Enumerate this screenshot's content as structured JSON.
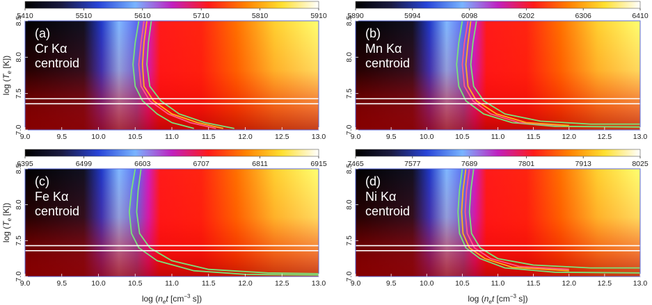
{
  "chart_data": {
    "type": "heatmap",
    "xlabel": "log (n_e t [cm^-3 s])",
    "ylabel": "log (T_e [K])",
    "xlim": [
      9.0,
      13.0
    ],
    "ylim": [
      7.0,
      8.5
    ],
    "x_ticks": [
      "9.0",
      "9.5",
      "10.0",
      "10.5",
      "11.0",
      "11.5",
      "12.0",
      "12.5",
      "13.0"
    ],
    "y_ticks": [
      "7.0",
      "7.5",
      "8.0",
      "8.5"
    ],
    "white_lines_logT": [
      7.36,
      7.43
    ],
    "colormap": [
      "#000000",
      "#1a1a40",
      "#2844d8",
      "#78b4ff",
      "#c020c0",
      "#ff1a1a",
      "#ff8000",
      "#ffe030",
      "#ffffff"
    ],
    "panels": [
      {
        "label": "(a)",
        "line1": "Cr Kα",
        "line2": "centroid",
        "colorbar_ticks": [
          "5410",
          "5510",
          "5610",
          "5710",
          "5810",
          "5910"
        ],
        "contours": [
          {
            "name": "green-left",
            "color": "#7be37b",
            "points": [
              [
                10.55,
                8.5
              ],
              [
                10.5,
                8.2
              ],
              [
                10.47,
                7.9
              ],
              [
                10.5,
                7.6
              ],
              [
                10.6,
                7.4
              ],
              [
                10.8,
                7.22
              ],
              [
                11.0,
                7.1
              ],
              [
                11.3,
                7.02
              ]
            ]
          },
          {
            "name": "pink-left",
            "color": "#ff5a8a",
            "points": [
              [
                10.62,
                8.5
              ],
              [
                10.58,
                8.2
              ],
              [
                10.55,
                7.9
              ],
              [
                10.58,
                7.6
              ],
              [
                10.7,
                7.4
              ],
              [
                10.95,
                7.22
              ],
              [
                11.25,
                7.1
              ],
              [
                11.6,
                7.02
              ]
            ]
          },
          {
            "name": "orange",
            "color": "#ffb020",
            "points": [
              [
                10.66,
                8.5
              ],
              [
                10.62,
                8.2
              ],
              [
                10.6,
                7.9
              ],
              [
                10.62,
                7.6
              ],
              [
                10.75,
                7.4
              ],
              [
                11.0,
                7.22
              ],
              [
                11.35,
                7.1
              ],
              [
                11.7,
                7.02
              ]
            ]
          },
          {
            "name": "green-right",
            "color": "#7be37b",
            "points": [
              [
                10.72,
                8.5
              ],
              [
                10.68,
                8.2
              ],
              [
                10.66,
                7.9
              ],
              [
                10.7,
                7.6
              ],
              [
                10.85,
                7.4
              ],
              [
                11.1,
                7.22
              ],
              [
                11.45,
                7.1
              ],
              [
                11.85,
                7.02
              ]
            ]
          }
        ]
      },
      {
        "label": "(b)",
        "line1": "Mn Kα",
        "line2": "centroid",
        "colorbar_ticks": [
          "5890",
          "5994",
          "6098",
          "6202",
          "6306",
          "6410"
        ],
        "contours": [
          {
            "name": "green-left",
            "color": "#7be37b",
            "points": [
              [
                10.5,
                8.5
              ],
              [
                10.45,
                8.2
              ],
              [
                10.42,
                7.9
              ],
              [
                10.45,
                7.6
              ],
              [
                10.55,
                7.4
              ],
              [
                10.8,
                7.22
              ],
              [
                11.2,
                7.1
              ],
              [
                11.8,
                7.05
              ],
              [
                13.0,
                7.04
              ]
            ]
          },
          {
            "name": "pink-left",
            "color": "#ff5a8a",
            "points": [
              [
                10.58,
                8.5
              ],
              [
                10.53,
                8.2
              ],
              [
                10.5,
                7.9
              ],
              [
                10.53,
                7.6
              ],
              [
                10.65,
                7.4
              ],
              [
                10.9,
                7.22
              ],
              [
                11.3,
                7.1
              ],
              [
                11.9,
                7.06
              ]
            ]
          },
          {
            "name": "orange",
            "color": "#ffb020",
            "points": [
              [
                10.62,
                8.5
              ],
              [
                10.58,
                8.2
              ],
              [
                10.55,
                7.9
              ],
              [
                10.58,
                7.6
              ],
              [
                10.7,
                7.4
              ],
              [
                10.98,
                7.22
              ],
              [
                11.4,
                7.1
              ],
              [
                12.0,
                7.06
              ]
            ]
          },
          {
            "name": "green-right",
            "color": "#7be37b",
            "points": [
              [
                10.7,
                8.5
              ],
              [
                10.65,
                8.2
              ],
              [
                10.62,
                7.9
              ],
              [
                10.66,
                7.6
              ],
              [
                10.8,
                7.4
              ],
              [
                11.1,
                7.22
              ],
              [
                11.6,
                7.12
              ],
              [
                12.3,
                7.08
              ],
              [
                13.0,
                7.08
              ]
            ]
          }
        ]
      },
      {
        "label": "(c)",
        "line1": "Fe Kα",
        "line2": "centroid",
        "colorbar_ticks": [
          "6395",
          "6499",
          "6603",
          "6707",
          "6811",
          "6915"
        ],
        "contours": [
          {
            "name": "green-left",
            "color": "#7be37b",
            "points": [
              [
                10.5,
                8.5
              ],
              [
                10.45,
                8.2
              ],
              [
                10.42,
                7.9
              ],
              [
                10.45,
                7.6
              ],
              [
                10.55,
                7.4
              ],
              [
                10.8,
                7.22
              ],
              [
                11.3,
                7.08
              ],
              [
                12.0,
                7.03
              ],
              [
                13.0,
                7.02
              ]
            ]
          },
          {
            "name": "green-right",
            "color": "#7be37b",
            "points": [
              [
                10.58,
                8.5
              ],
              [
                10.54,
                8.2
              ],
              [
                10.52,
                7.9
              ],
              [
                10.56,
                7.6
              ],
              [
                10.7,
                7.4
              ],
              [
                11.0,
                7.22
              ],
              [
                11.5,
                7.1
              ],
              [
                12.3,
                7.05
              ],
              [
                13.0,
                7.04
              ]
            ]
          }
        ]
      },
      {
        "label": "(d)",
        "line1": "Ni Kα",
        "line2": "centroid",
        "colorbar_ticks": [
          "7465",
          "7577",
          "7689",
          "7801",
          "7913",
          "8025"
        ],
        "contours": [
          {
            "name": "green-left",
            "color": "#7be37b",
            "points": [
              [
                10.5,
                8.5
              ],
              [
                10.46,
                8.2
              ],
              [
                10.44,
                7.9
              ],
              [
                10.46,
                7.6
              ],
              [
                10.55,
                7.4
              ],
              [
                10.75,
                7.25
              ],
              [
                11.1,
                7.12
              ],
              [
                11.8,
                7.06
              ],
              [
                13.0,
                7.05
              ]
            ]
          },
          {
            "name": "orange",
            "color": "#ffb020",
            "points": [
              [
                10.55,
                8.5
              ],
              [
                10.51,
                8.2
              ],
              [
                10.49,
                7.9
              ],
              [
                10.51,
                7.6
              ],
              [
                10.6,
                7.4
              ],
              [
                10.82,
                7.25
              ],
              [
                11.2,
                7.13
              ],
              [
                12.0,
                7.08
              ]
            ]
          },
          {
            "name": "pink-left",
            "color": "#ff5a8a",
            "points": [
              [
                10.6,
                8.5
              ],
              [
                10.56,
                8.2
              ],
              [
                10.54,
                7.9
              ],
              [
                10.57,
                7.6
              ],
              [
                10.67,
                7.4
              ],
              [
                10.9,
                7.25
              ],
              [
                11.3,
                7.14
              ],
              [
                12.0,
                7.1
              ]
            ]
          },
          {
            "name": "green-right",
            "color": "#7be37b",
            "points": [
              [
                10.66,
                8.5
              ],
              [
                10.62,
                8.2
              ],
              [
                10.6,
                7.9
              ],
              [
                10.63,
                7.6
              ],
              [
                10.75,
                7.4
              ],
              [
                11.0,
                7.25
              ],
              [
                11.5,
                7.16
              ],
              [
                12.3,
                7.12
              ],
              [
                13.0,
                7.12
              ]
            ]
          }
        ]
      }
    ]
  }
}
